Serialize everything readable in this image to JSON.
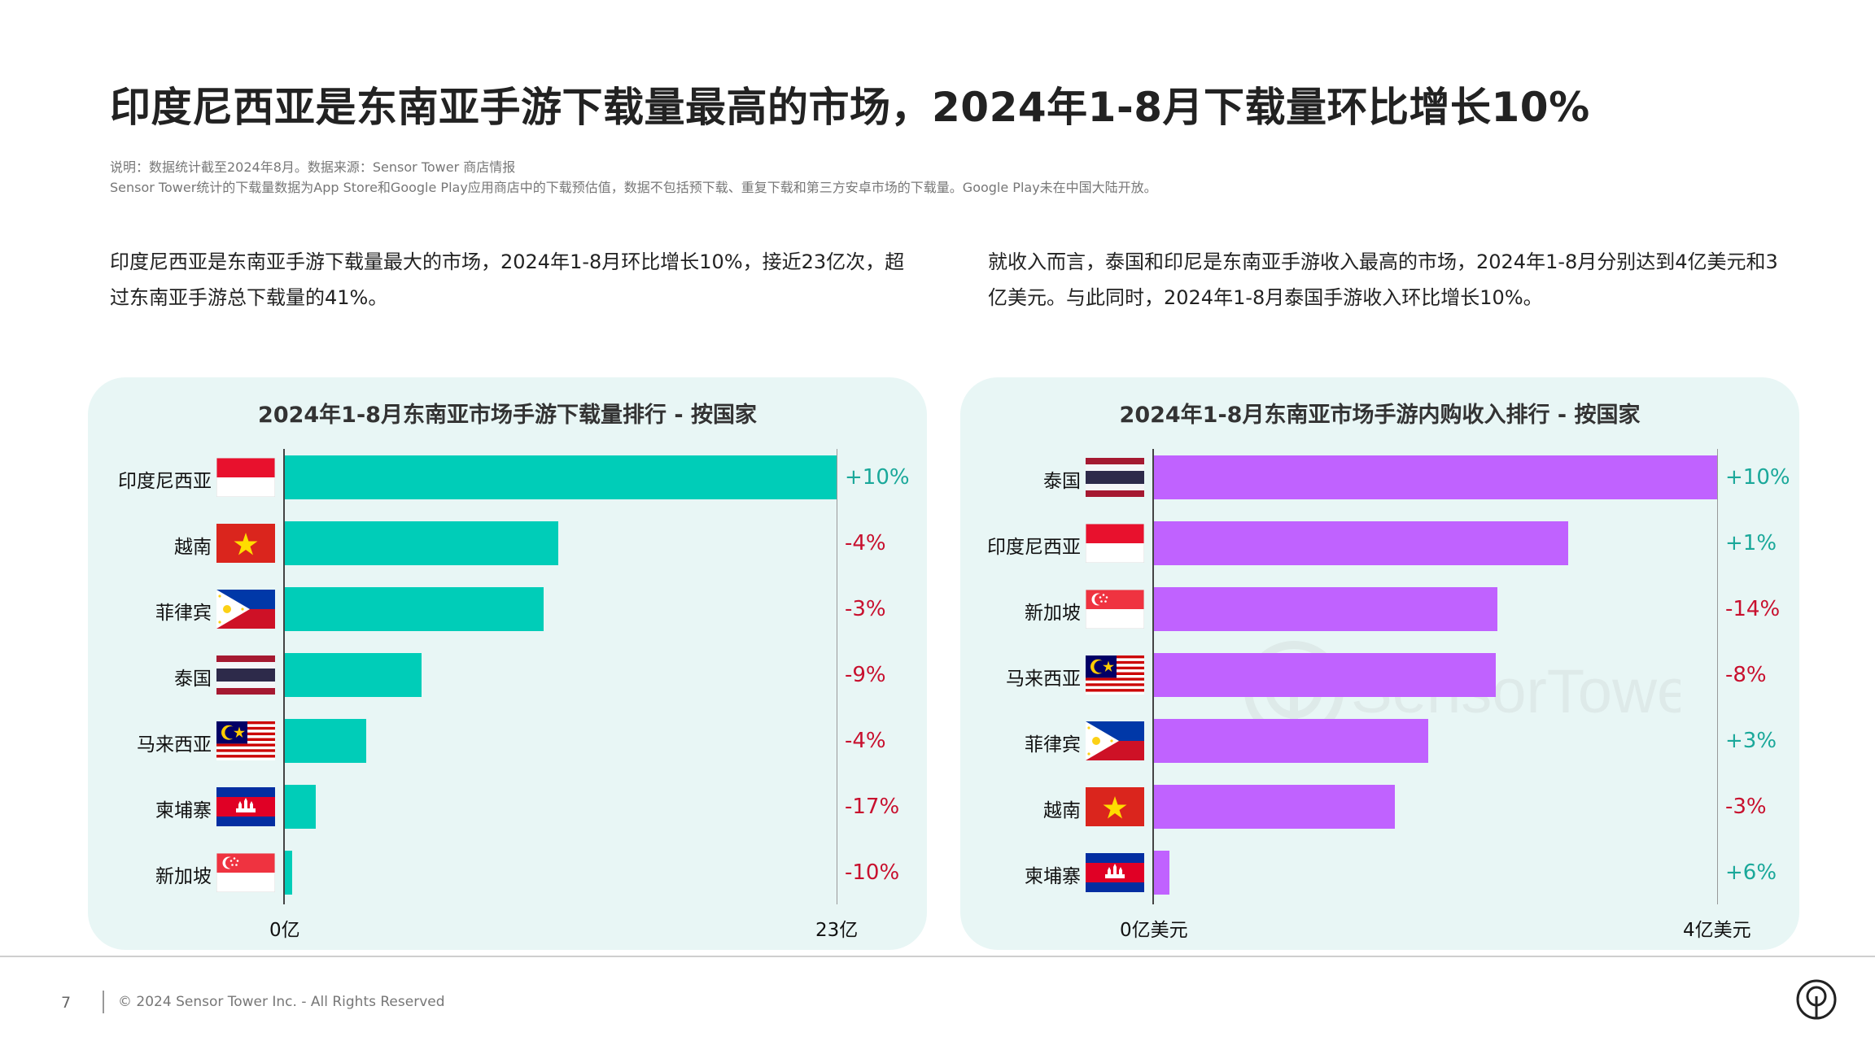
{
  "title": "印度尼西亚是东南亚手游下载量最高的市场，2024年1-8月下载量环比增长10%",
  "notes": {
    "line1": "说明：数据统计截至2024年8月。数据来源：Sensor Tower 商店情报",
    "line2": "Sensor Tower统计的下载量数据为App Store和Google Play应用商店中的下载预估值，数据不包括预下载、重复下载和第三方安卓市场的下载量。Google Play未在中国大陆开放。"
  },
  "paragraphs": {
    "left": "印度尼西亚是东南亚手游下载量最大的市场，2024年1-8月环比增长10%，接近23亿次，超过东南亚手游总下载量的41%。",
    "right": "就收入而言，泰国和印尼是东南亚手游收入最高的市场，2024年1-8月分别达到4亿美元和3亿美元。与此同时，2024年1-8月泰国手游收入环比增长10%。"
  },
  "colors": {
    "download_bar": "#00cdb8",
    "revenue_bar": "#c062ff",
    "panel_bg": "#e8f6f5",
    "positive": "#1aa89a",
    "negative": "#c8102e"
  },
  "chart_data": [
    {
      "type": "bar",
      "orientation": "horizontal",
      "title": "2024年1-8月东南亚市场手游下载量排行 - 按国家",
      "categories": [
        "印度尼西亚",
        "越南",
        "菲律宾",
        "泰国",
        "马来西亚",
        "柬埔寨",
        "新加坡"
      ],
      "flags": [
        "indonesia",
        "vietnam",
        "philippines",
        "thailand",
        "malaysia",
        "cambodia",
        "singapore"
      ],
      "values": [
        23,
        11.4,
        10.8,
        5.7,
        3.4,
        1.3,
        0.3
      ],
      "changes": [
        "+10%",
        "-4%",
        "-3%",
        "-9%",
        "-4%",
        "-17%",
        "-10%"
      ],
      "xlim": [
        0,
        23
      ],
      "x_tick_labels": [
        "0亿",
        "23亿"
      ]
    },
    {
      "type": "bar",
      "orientation": "horizontal",
      "title": "2024年1-8月东南亚市场手游内购收入排行 - 按国家",
      "categories": [
        "泰国",
        "印度尼西亚",
        "新加坡",
        "马来西亚",
        "菲律宾",
        "越南",
        "柬埔寨"
      ],
      "flags": [
        "thailand",
        "indonesia",
        "singapore",
        "malaysia",
        "philippines",
        "vietnam",
        "cambodia"
      ],
      "values": [
        4,
        2.94,
        2.44,
        2.43,
        1.95,
        1.71,
        0.11
      ],
      "changes": [
        "+10%",
        "+1%",
        "-14%",
        "-8%",
        "+3%",
        "-3%",
        "+6%"
      ],
      "xlim": [
        0,
        4
      ],
      "x_tick_labels": [
        "0亿美元",
        "4亿美元"
      ]
    }
  ],
  "watermark_text": "SensorTower",
  "footer": {
    "page": "7",
    "copyright": "© 2024 Sensor Tower Inc. - All Rights Reserved"
  },
  "logo_icon": "sensor-tower-logo-icon"
}
